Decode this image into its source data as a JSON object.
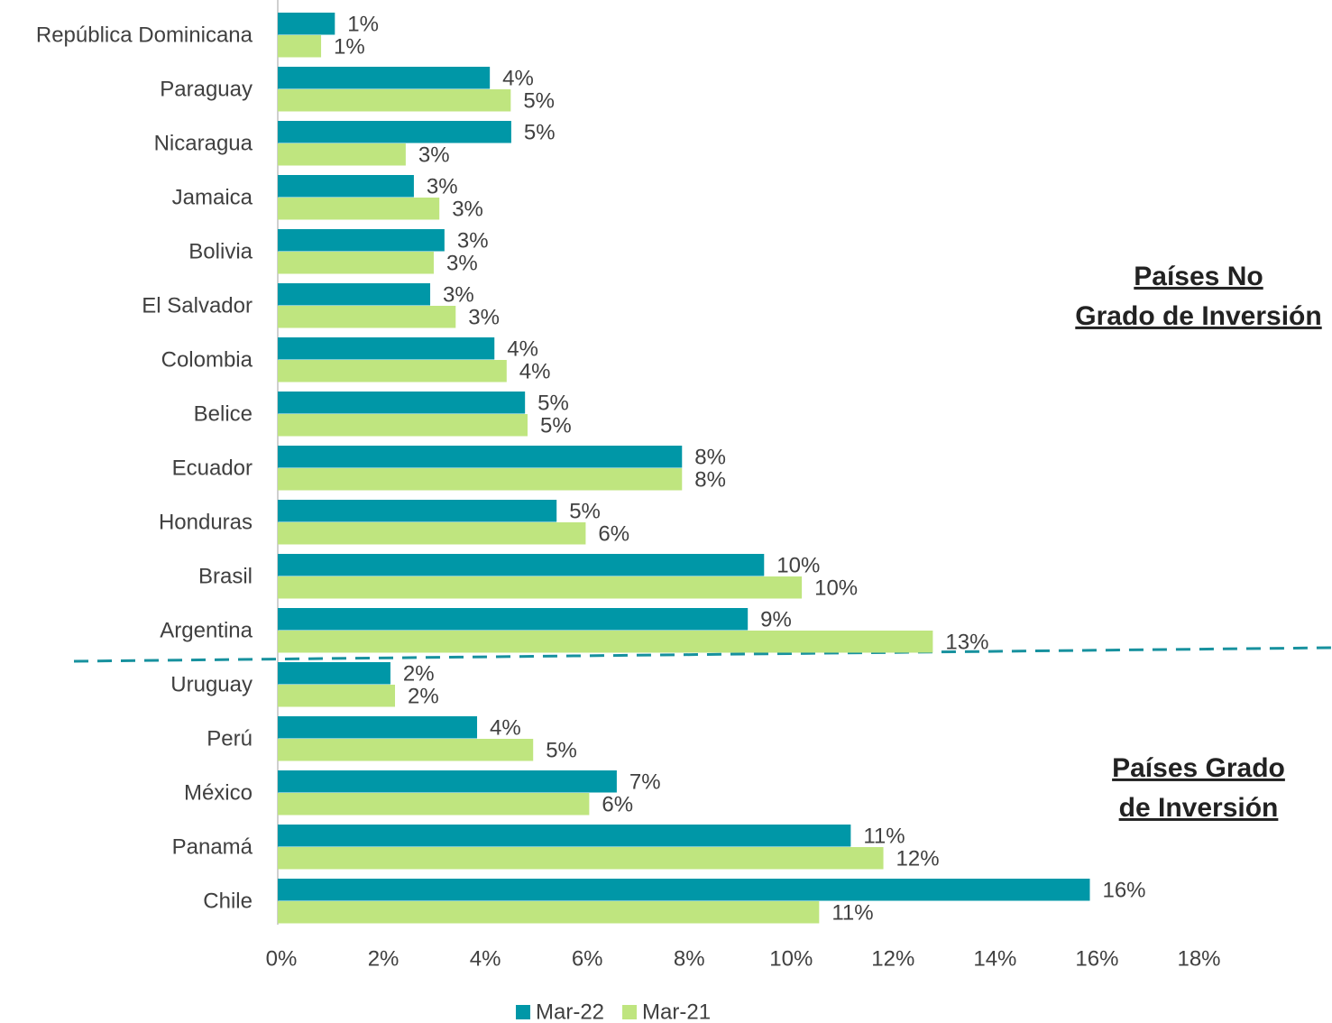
{
  "chart_data": {
    "type": "bar",
    "orientation": "horizontal",
    "categories": [
      "República Dominicana",
      "Paraguay",
      "Nicaragua",
      "Jamaica",
      "Bolivia",
      "El Salvador",
      "Colombia",
      "Belice",
      "Ecuador",
      "Honduras",
      "Brasil",
      "Argentina",
      "Uruguay",
      "Perú",
      "México",
      "Panamá",
      "Chile"
    ],
    "series": [
      {
        "name": "Mar-22",
        "color": "#0097a7",
        "values": [
          1.12,
          4.16,
          4.58,
          2.67,
          3.27,
          2.99,
          4.25,
          4.85,
          7.93,
          5.47,
          9.54,
          9.22,
          2.21,
          3.91,
          6.65,
          11.24,
          15.93
        ],
        "value_labels": [
          "1%",
          "4%",
          "5%",
          "3%",
          "3%",
          "3%",
          "4%",
          "5%",
          "8%",
          "5%",
          "10%",
          "9%",
          "2%",
          "4%",
          "7%",
          "11%",
          "16%"
        ]
      },
      {
        "name": "Mar-21",
        "color": "#bfe57f",
        "values": [
          0.85,
          4.57,
          2.51,
          3.17,
          3.06,
          3.49,
          4.49,
          4.9,
          7.93,
          6.04,
          10.28,
          12.85,
          2.3,
          5.01,
          6.11,
          11.88,
          10.62
        ],
        "value_labels": [
          "1%",
          "5%",
          "3%",
          "3%",
          "3%",
          "3%",
          "4%",
          "5%",
          "8%",
          "6%",
          "10%",
          "13%",
          "2%",
          "5%",
          "6%",
          "12%",
          "11%"
        ]
      }
    ],
    "xlim": [
      0,
      18
    ],
    "xticks": [
      {
        "value": 0,
        "label": "0%"
      },
      {
        "value": 2,
        "label": "2%"
      },
      {
        "value": 4,
        "label": "4%"
      },
      {
        "value": 6,
        "label": "6%"
      },
      {
        "value": 8,
        "label": "8%"
      },
      {
        "value": 10,
        "label": "10%"
      },
      {
        "value": 12,
        "label": "12%"
      },
      {
        "value": 14,
        "label": "14%"
      },
      {
        "value": 16,
        "label": "16%"
      },
      {
        "value": 18,
        "label": "18%"
      }
    ],
    "grid": false,
    "legend": "bottom",
    "annotations": [
      {
        "lines": [
          "Países No",
          "Grado de Inversión"
        ]
      },
      {
        "lines": [
          "Países Grado",
          "de Inversión"
        ]
      }
    ]
  }
}
